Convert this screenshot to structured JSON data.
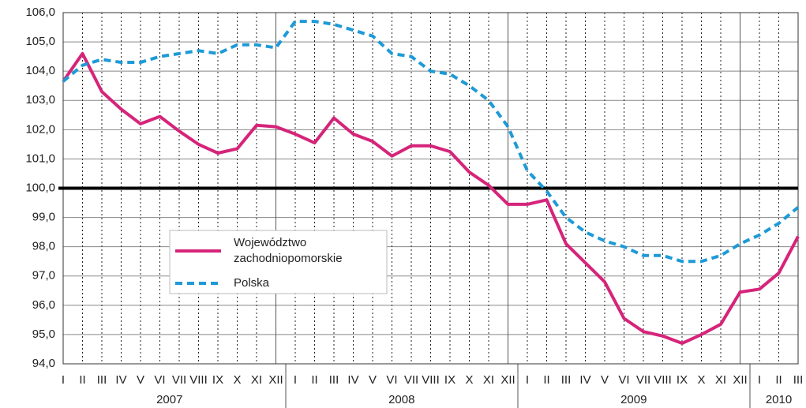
{
  "chart_data": {
    "type": "line",
    "categories": [
      "I",
      "II",
      "III",
      "IV",
      "V",
      "VI",
      "VII",
      "VIII",
      "IX",
      "X",
      "XI",
      "XII",
      "I",
      "II",
      "III",
      "IV",
      "V",
      "VI",
      "VII",
      "VIII",
      "IX",
      "X",
      "XI",
      "XII",
      "I",
      "II",
      "III",
      "IV",
      "V",
      "VI",
      "VII",
      "VIII",
      "IX",
      "X",
      "XI",
      "XII",
      "I",
      "II",
      "III"
    ],
    "years": [
      "2007",
      "2008",
      "2009",
      "2010"
    ],
    "series": [
      {
        "name": "Województwo zachodniopomorskie",
        "color": "#d6247a",
        "style": "solid",
        "values": [
          103.65,
          104.6,
          103.3,
          102.7,
          102.2,
          102.45,
          101.95,
          101.5,
          101.2,
          101.35,
          102.15,
          102.1,
          101.85,
          101.55,
          102.4,
          101.85,
          101.6,
          101.1,
          101.45,
          101.45,
          101.25,
          100.55,
          100.1,
          99.45,
          99.45,
          99.6,
          98.1,
          97.45,
          96.8,
          95.55,
          95.1,
          94.95,
          94.7,
          95.0,
          95.35,
          96.45,
          96.55,
          97.1,
          98.35
        ]
      },
      {
        "name": "Polska",
        "color": "#1e9ad6",
        "style": "dashed",
        "values": [
          103.65,
          104.2,
          104.4,
          104.3,
          104.3,
          104.5,
          104.6,
          104.7,
          104.6,
          104.9,
          104.9,
          104.8,
          105.7,
          105.7,
          105.6,
          105.4,
          105.2,
          104.6,
          104.5,
          104.0,
          103.9,
          103.5,
          103.0,
          102.1,
          100.6,
          99.9,
          99.0,
          98.5,
          98.2,
          98.0,
          97.7,
          97.7,
          97.5,
          97.5,
          97.7,
          98.1,
          98.4,
          98.8,
          99.35
        ]
      }
    ],
    "ylim": [
      94,
      106
    ],
    "yticks": [
      {
        "value": 94,
        "label": "94,0"
      },
      {
        "value": 95,
        "label": "95,0"
      },
      {
        "value": 96,
        "label": "96,0"
      },
      {
        "value": 97,
        "label": "97,0"
      },
      {
        "value": 98,
        "label": "98,0"
      },
      {
        "value": 99,
        "label": "99,0"
      },
      {
        "value": 100,
        "label": "100,0"
      },
      {
        "value": 101,
        "label": "101,0"
      },
      {
        "value": 102,
        "label": "102,0"
      },
      {
        "value": 103,
        "label": "103,0"
      },
      {
        "value": 104,
        "label": "104,0"
      },
      {
        "value": 105,
        "label": "105,0"
      },
      {
        "value": 106,
        "label": "106,0"
      }
    ],
    "reference_line": 100,
    "grid": true
  }
}
